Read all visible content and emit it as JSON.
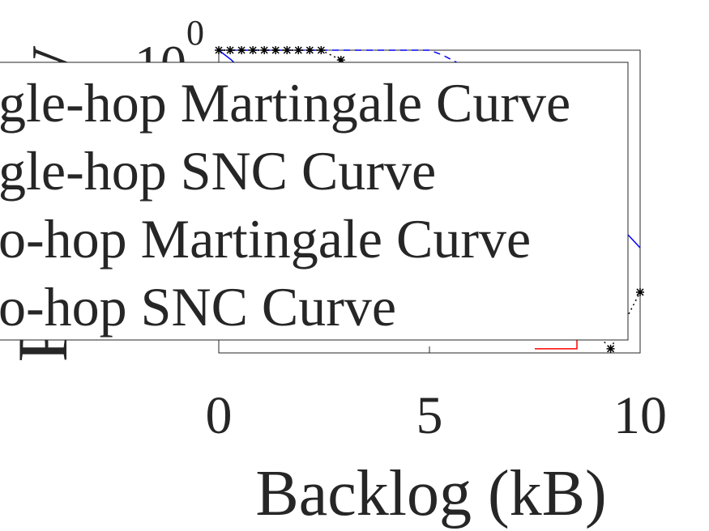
{
  "chart_data": {
    "type": "line",
    "xlabel": "Backlog (kB)",
    "ylabel": "Probability",
    "xlim": [
      0,
      10
    ],
    "xticks": [
      0,
      5,
      10
    ],
    "ylim": [
      0.001,
      1
    ],
    "yticks": [
      {
        "value": 1,
        "label": "10^0"
      }
    ],
    "log_y": true,
    "grid": false,
    "legend_position": "northwest",
    "series": [
      {
        "name": "gle-hop Martingale Curve",
        "color": "#0000ff",
        "style": "solid",
        "marker": "none",
        "x": [
          0,
          0.3,
          0.6,
          9.7,
          10
        ],
        "values": [
          1,
          0.8,
          0.6,
          0.015,
          0.011
        ]
      },
      {
        "name": "gle-hop SNC Curve",
        "color": "#0000ff",
        "style": "dashed",
        "marker": "none",
        "x": [
          0,
          5,
          5.3,
          9.7
        ],
        "values": [
          1,
          1,
          0.9,
          0.1
        ]
      },
      {
        "name": "o-hop Martingale Curve",
        "color": "#ff0000",
        "style": "solid",
        "marker": "none",
        "x": [
          7.5,
          8.5,
          8.5,
          9.6,
          9.6
        ],
        "values": [
          0.0011,
          0.0011,
          0.0015,
          0.0015,
          0.002
        ]
      },
      {
        "name": "o-hop SNC Curve",
        "color": "#000000",
        "style": "dotted",
        "marker": "star",
        "x": [
          0,
          0.27,
          0.54,
          0.81,
          1.08,
          1.35,
          1.62,
          1.89,
          2.16,
          2.43,
          2.9,
          9.3,
          10
        ],
        "values": [
          1,
          1,
          1,
          1,
          1,
          1,
          1,
          1,
          1,
          1,
          0.8,
          0.0011,
          0.004
        ]
      }
    ]
  }
}
